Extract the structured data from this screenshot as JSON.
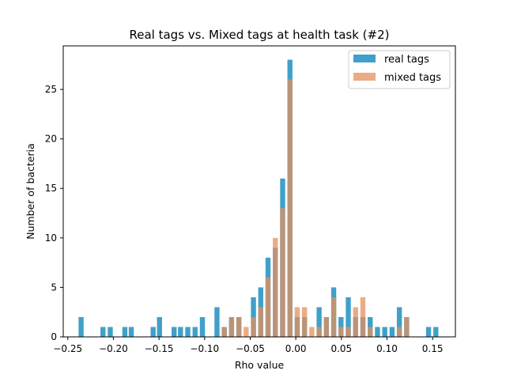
{
  "chart_data": {
    "type": "bar",
    "title": "Real tags vs. Mixed tags at health task (#2)",
    "xlabel": "Rho value",
    "ylabel": "Number of bacteria",
    "xlim": [
      -0.255,
      0.175
    ],
    "ylim": [
      0,
      29.4
    ],
    "bin_width": 0.0064,
    "xticks": [
      -0.25,
      -0.2,
      -0.15,
      -0.1,
      -0.05,
      0.0,
      0.05,
      0.1,
      0.15
    ],
    "xtick_labels": [
      "−0.25",
      "−0.20",
      "−0.15",
      "−0.10",
      "−0.05",
      "0.00",
      "0.05",
      "0.10",
      "0.15"
    ],
    "yticks": [
      0,
      5,
      10,
      15,
      20,
      25
    ],
    "ytick_labels": [
      "0",
      "5",
      "10",
      "15",
      "20",
      "25"
    ],
    "grid": false,
    "legend_position": "top-right",
    "series": [
      {
        "name": "real tags",
        "color": "#1f8fc0",
        "opacity": 0.85,
        "x": [
          -0.235,
          -0.211,
          -0.203,
          -0.187,
          -0.18,
          -0.156,
          -0.149,
          -0.133,
          -0.126,
          -0.118,
          -0.11,
          -0.102,
          -0.086,
          -0.078,
          -0.07,
          -0.062,
          -0.046,
          -0.038,
          -0.03,
          -0.022,
          -0.014,
          -0.006,
          0.002,
          0.01,
          0.026,
          0.034,
          0.042,
          0.05,
          0.058,
          0.066,
          0.074,
          0.082,
          0.09,
          0.098,
          0.106,
          0.114,
          0.122,
          0.146,
          0.154
        ],
        "values": [
          2,
          1,
          1,
          1,
          1,
          1,
          2,
          1,
          1,
          1,
          1,
          2,
          3,
          1,
          2,
          2,
          4,
          5,
          8,
          9,
          16,
          28,
          2,
          2,
          3,
          2,
          5,
          2,
          4,
          2,
          2,
          2,
          1,
          1,
          1,
          3,
          2,
          1,
          1
        ]
      },
      {
        "name": "mixed tags",
        "color": "#e4905c",
        "opacity": 0.75,
        "x": [
          -0.078,
          -0.07,
          -0.062,
          -0.054,
          -0.046,
          -0.038,
          -0.03,
          -0.022,
          -0.014,
          -0.006,
          0.002,
          0.01,
          0.018,
          0.026,
          0.034,
          0.042,
          0.05,
          0.058,
          0.066,
          0.074,
          0.082,
          0.114,
          0.122
        ],
        "values": [
          1,
          2,
          2,
          1,
          2,
          3,
          6,
          10,
          13,
          26,
          3,
          3,
          1,
          1,
          2,
          4,
          1,
          1,
          3,
          4,
          1,
          1,
          2
        ]
      }
    ]
  }
}
